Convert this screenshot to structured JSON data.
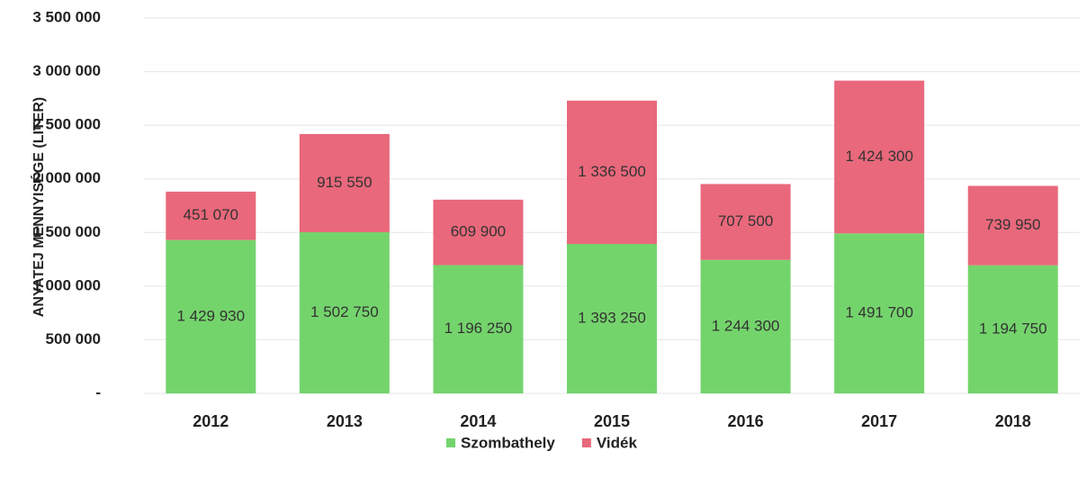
{
  "chart_data": {
    "type": "stacked_bar",
    "y_label": "ANYATEJ MENNYISÉGE (LITER)",
    "categories": [
      "2012",
      "2013",
      "2014",
      "2015",
      "2016",
      "2017",
      "2018"
    ],
    "series": [
      {
        "name": "Szombathely",
        "color": "#74d46c",
        "values": [
          1429930,
          1502750,
          1196250,
          1393250,
          1244300,
          1491700,
          1194750
        ],
        "value_labels": [
          "1 429 930",
          "1 502 750",
          "1 196 250",
          "1 393 250",
          "1 244 300",
          "1 491 700",
          "1 194 750"
        ]
      },
      {
        "name": "Vidék",
        "color": "#e9687b",
        "values": [
          451070,
          915550,
          609900,
          1336500,
          707500,
          1424300,
          739950
        ],
        "value_labels": [
          "451 070",
          "915 550",
          "609 900",
          "1 336 500",
          "707 500",
          "1 424 300",
          "739 950"
        ]
      }
    ],
    "ylim": [
      0,
      3500000
    ],
    "yticks": [
      {
        "value": 0,
        "label": "-"
      },
      {
        "value": 500000,
        "label": "500 000"
      },
      {
        "value": 1000000,
        "label": "1 000 000"
      },
      {
        "value": 1500000,
        "label": "1 500 000"
      },
      {
        "value": 2000000,
        "label": "2 000 000"
      },
      {
        "value": 2500000,
        "label": "2 500 000"
      },
      {
        "value": 3000000,
        "label": "3 000 000"
      },
      {
        "value": 3500000,
        "label": "3 500 000"
      }
    ],
    "grid": true,
    "legend": "bottom"
  }
}
